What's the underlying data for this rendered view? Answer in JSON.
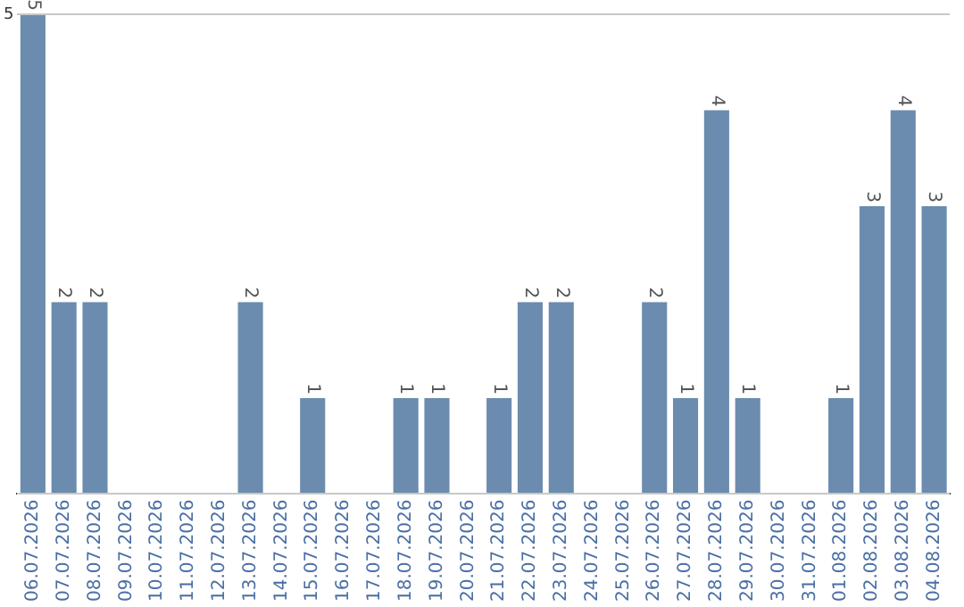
{
  "chart_data": {
    "type": "bar",
    "categories": [
      "06.07.2026",
      "07.07.2026",
      "08.07.2026",
      "09.07.2026",
      "10.07.2026",
      "11.07.2026",
      "12.07.2026",
      "13.07.2026",
      "14.07.2026",
      "15.07.2026",
      "16.07.2026",
      "17.07.2026",
      "18.07.2026",
      "19.07.2026",
      "20.07.2026",
      "21.07.2026",
      "22.07.2026",
      "23.07.2026",
      "24.07.2026",
      "25.07.2026",
      "26.07.2026",
      "27.07.2026",
      "28.07.2026",
      "29.07.2026",
      "30.07.2026",
      "31.07.2026",
      "01.08.2026",
      "02.08.2026",
      "03.08.2026",
      "04.08.2026"
    ],
    "values": [
      5,
      2,
      2,
      0,
      0,
      0,
      0,
      2,
      0,
      1,
      0,
      0,
      1,
      1,
      0,
      1,
      2,
      2,
      0,
      0,
      2,
      1,
      4,
      1,
      0,
      0,
      1,
      3,
      4,
      3
    ],
    "value_labels": [
      "5",
      "2",
      "2",
      null,
      null,
      null,
      null,
      "2",
      null,
      "1",
      null,
      null,
      "1",
      "1",
      null,
      "1",
      "2",
      "2",
      null,
      null,
      "2",
      "1",
      "4",
      "1",
      null,
      null,
      "1",
      "3",
      "4",
      "3"
    ],
    "color": "#6b8cae",
    "ylim": [
      0,
      5
    ],
    "yticks": [
      {
        "value": 0,
        "label": null
      },
      5
    ],
    "grid": "y",
    "legend": false
  }
}
